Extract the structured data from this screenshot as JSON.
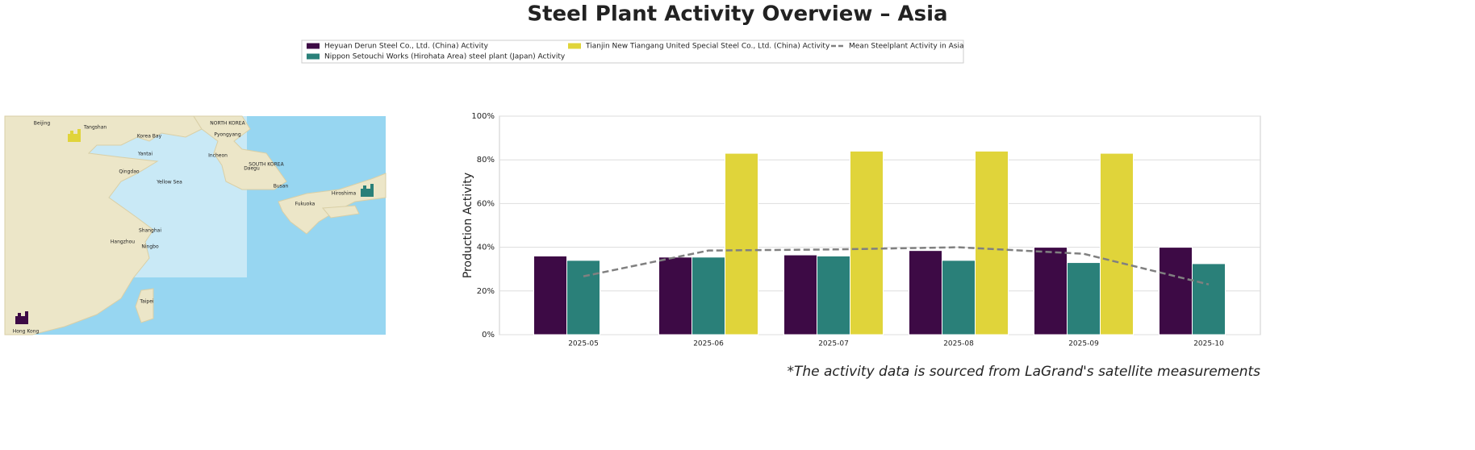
{
  "chart_data": {
    "type": "bar",
    "title": "Steel Plant Activity Overview – Asia",
    "ylabel": "Production Activity",
    "note": "*The activity data is sourced from LaGrand's satellite measurements",
    "categories": [
      "2025-05",
      "2025-06",
      "2025-07",
      "2025-08",
      "2025-09",
      "2025-10"
    ],
    "series": [
      {
        "name": "Heyuan Derun Steel Co., Ltd. (China) Activity",
        "color": "#3d0a45",
        "values": [
          36,
          35.5,
          36.5,
          38.5,
          40,
          40
        ]
      },
      {
        "name": "Nippon Setouchi Works (Hirohata Area) steel plant (Japan) Activity",
        "color": "#2a8079",
        "values": [
          34,
          35.5,
          36,
          34,
          33,
          32.5
        ]
      },
      {
        "name": "Tianjin New Tiangang United Special Steel Co., Ltd. (China) Activity",
        "color": "#e0d43a",
        "values": [
          null,
          83,
          84,
          84,
          83,
          null
        ]
      },
      {
        "name": "Mean Steelplant Activity in Asia",
        "color": "#808080",
        "type": "line",
        "style": "dashed",
        "values": [
          26.7,
          38.5,
          39,
          40,
          37,
          23
        ]
      }
    ],
    "ylim": [
      0,
      100
    ],
    "yticks": [
      {
        "value": 0,
        "label": "0%"
      },
      {
        "value": 20,
        "label": "20%"
      },
      {
        "value": 40,
        "label": "40%"
      },
      {
        "value": 60,
        "label": "60%"
      },
      {
        "value": 80,
        "label": "80%"
      },
      {
        "value": 100,
        "label": "100%"
      }
    ],
    "grid": true
  },
  "map": {
    "labels": [
      "Beijing",
      "Tangshan",
      "NORTH KOREA",
      "Pyongyang",
      "Korea Bay",
      "Yantai",
      "Qingdao",
      "Yellow Sea",
      "Incheon",
      "SOUTH KOREA",
      "Daegu",
      "Busan",
      "Fukuoka",
      "Hiroshima",
      "Shanghai",
      "Hangzhou",
      "Ningbo",
      "Taipei",
      "Hong Kong"
    ]
  }
}
